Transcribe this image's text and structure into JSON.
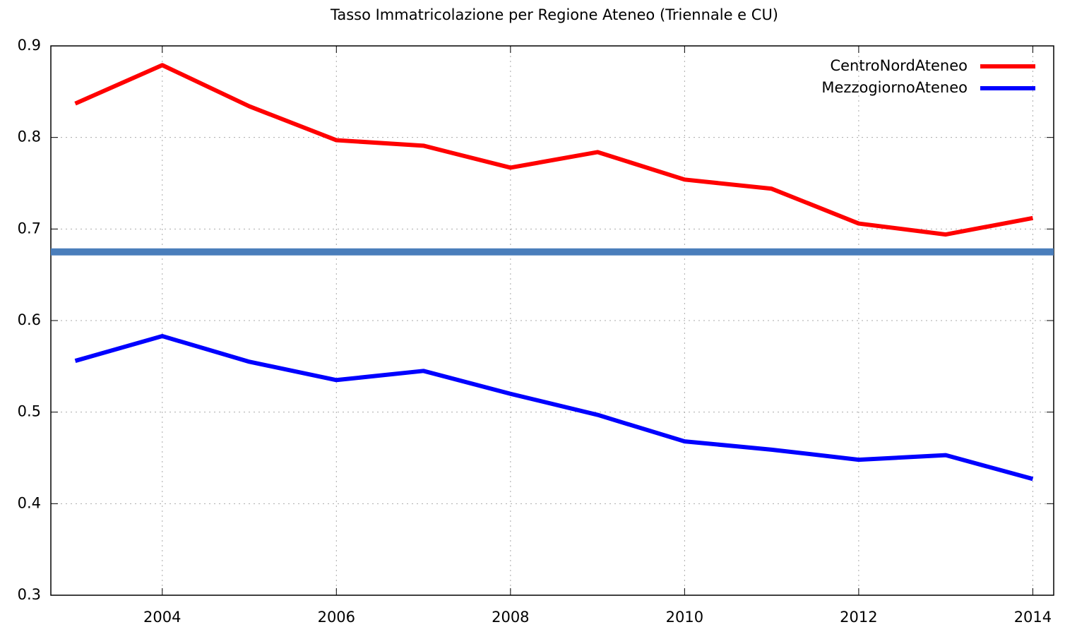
{
  "chart_data": {
    "type": "line",
    "title": "Tasso Immatricolazione per Regione Ateneo (Triennale e CU)",
    "x": [
      2003,
      2004,
      2005,
      2006,
      2007,
      2008,
      2009,
      2010,
      2011,
      2012,
      2013,
      2014
    ],
    "series": [
      {
        "name": "CentroNordAteneo",
        "color": "#ff0000",
        "values": [
          0.837,
          0.879,
          0.834,
          0.797,
          0.791,
          0.767,
          0.784,
          0.754,
          0.744,
          0.706,
          0.694,
          0.712
        ]
      },
      {
        "name": "MezzogiornoAteneo",
        "color": "#0000ff",
        "values": [
          0.556,
          0.583,
          0.555,
          0.535,
          0.545,
          0.52,
          0.497,
          0.468,
          0.459,
          0.448,
          0.453,
          0.427
        ]
      }
    ],
    "reference_line": {
      "value": 0.675,
      "color": "#4a7ebb"
    },
    "xlim": [
      2002.72,
      2014.24
    ],
    "xticks": [
      2004,
      2006,
      2008,
      2010,
      2012,
      2014
    ],
    "ylim": [
      0.3,
      0.9
    ],
    "yticks": [
      0.3,
      0.4,
      0.5,
      0.6,
      0.7,
      0.8,
      0.9
    ],
    "grid": true,
    "legend": "top-right"
  }
}
